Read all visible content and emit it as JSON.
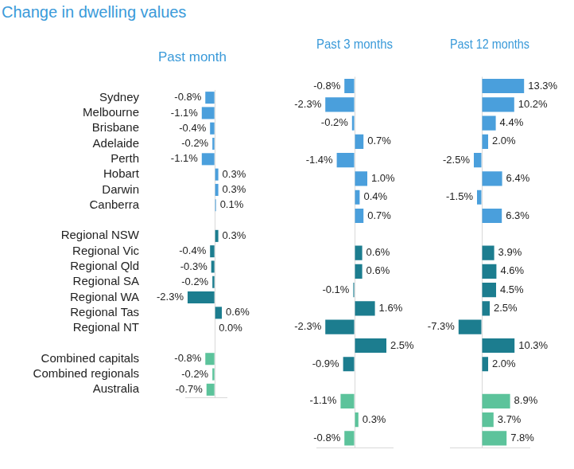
{
  "title": "Change in dwelling values",
  "chart_data": [
    {
      "type": "bar",
      "orientation": "horizontal",
      "title": "Past month",
      "categories": [
        "Sydney",
        "Melbourne",
        "Brisbane",
        "Adelaide",
        "Perth",
        "Hobart",
        "Darwin",
        "Canberra",
        null,
        "Regional NSW",
        "Regional Vic",
        "Regional Qld",
        "Regional SA",
        "Regional WA",
        "Regional Tas",
        "Regional NT",
        null,
        "Combined capitals",
        "Combined regionals",
        "Australia"
      ],
      "values": [
        -0.8,
        -1.1,
        -0.4,
        -0.2,
        -1.1,
        0.3,
        0.3,
        0.1,
        null,
        0.3,
        -0.4,
        -0.3,
        -0.2,
        -2.3,
        0.6,
        0.0,
        null,
        -0.8,
        -0.2,
        -0.7
      ],
      "value_labels": [
        "-0.8%",
        "-1.1%",
        "-0.4%",
        "-0.2%",
        "-1.1%",
        "0.3%",
        "0.3%",
        "0.1%",
        null,
        "0.3%",
        "-0.4%",
        "-0.3%",
        "-0.2%",
        "-2.3%",
        "0.6%",
        "0.0%",
        null,
        "-0.8%",
        "-0.2%",
        "-0.7%"
      ],
      "colors": [
        "#4a9fdc",
        "#4a9fdc",
        "#4a9fdc",
        "#4a9fdc",
        "#4a9fdc",
        "#4a9fdc",
        "#4a9fdc",
        "#4a9fdc",
        null,
        "#1c7d8f",
        "#1c7d8f",
        "#1c7d8f",
        "#1c7d8f",
        "#1c7d8f",
        "#1c7d8f",
        "#1c7d8f",
        null,
        "#5cc39b",
        "#5cc39b",
        "#5cc39b"
      ],
      "xlim": [
        -2.5,
        1.0
      ],
      "xticks": [
        0
      ],
      "grid": true,
      "data_labels": true,
      "tick_labels": "y"
    },
    {
      "type": "bar",
      "orientation": "horizontal",
      "title": "Past 3 months",
      "categories": [
        "Sydney",
        "Melbourne",
        "Brisbane",
        "Adelaide",
        "Perth",
        "Hobart",
        "Darwin",
        "Canberra",
        null,
        "Regional NSW",
        "Regional Vic",
        "Regional Qld",
        "Regional SA",
        "Regional WA",
        "Regional Tas",
        "Regional NT",
        null,
        "Combined capitals",
        "Combined regionals",
        "Australia"
      ],
      "values": [
        -0.8,
        -2.3,
        -0.2,
        0.7,
        -1.4,
        1.0,
        0.4,
        0.7,
        null,
        0.6,
        0.6,
        -0.1,
        1.6,
        -2.3,
        2.5,
        -0.9,
        null,
        -1.1,
        0.3,
        -0.8
      ],
      "value_labels": [
        "-0.8%",
        "-2.3%",
        "-0.2%",
        "0.7%",
        "-1.4%",
        "1.0%",
        "0.4%",
        "0.7%",
        null,
        "0.6%",
        "0.6%",
        "-0.1%",
        "1.6%",
        "-2.3%",
        "2.5%",
        "-0.9%",
        null,
        "-1.1%",
        "0.3%",
        "-0.8%"
      ],
      "colors": [
        "#4a9fdc",
        "#4a9fdc",
        "#4a9fdc",
        "#4a9fdc",
        "#4a9fdc",
        "#4a9fdc",
        "#4a9fdc",
        "#4a9fdc",
        null,
        "#1c7d8f",
        "#1c7d8f",
        "#1c7d8f",
        "#1c7d8f",
        "#1c7d8f",
        "#1c7d8f",
        "#1c7d8f",
        null,
        "#5cc39b",
        "#5cc39b",
        "#5cc39b"
      ],
      "xlim": [
        -3,
        3
      ],
      "xticks": [
        0
      ],
      "grid": true,
      "data_labels": true,
      "tick_labels": false
    },
    {
      "type": "bar",
      "orientation": "horizontal",
      "title": "Past 12 months",
      "categories": [
        "Sydney",
        "Melbourne",
        "Brisbane",
        "Adelaide",
        "Perth",
        "Hobart",
        "Darwin",
        "Canberra",
        null,
        "Regional NSW",
        "Regional Vic",
        "Regional Qld",
        "Regional SA",
        "Regional WA",
        "Regional Tas",
        "Regional NT",
        null,
        "Combined capitals",
        "Combined regionals",
        "Australia"
      ],
      "values": [
        13.3,
        10.2,
        4.4,
        2.0,
        -2.5,
        6.4,
        -1.5,
        6.3,
        null,
        3.9,
        4.6,
        4.5,
        2.5,
        -7.3,
        10.3,
        2.0,
        null,
        8.9,
        3.7,
        7.8
      ],
      "value_labels": [
        "13.3%",
        "10.2%",
        "4.4%",
        "2.0%",
        "-2.5%",
        "6.4%",
        "-1.5%",
        "6.3%",
        null,
        "3.9%",
        "4.6%",
        "4.5%",
        "2.5%",
        "-7.3%",
        "10.3%",
        "2.0%",
        null,
        "8.9%",
        "3.7%",
        "7.8%"
      ],
      "colors": [
        "#4a9fdc",
        "#4a9fdc",
        "#4a9fdc",
        "#4a9fdc",
        "#4a9fdc",
        "#4a9fdc",
        "#4a9fdc",
        "#4a9fdc",
        null,
        "#1c7d8f",
        "#1c7d8f",
        "#1c7d8f",
        "#1c7d8f",
        "#1c7d8f",
        "#1c7d8f",
        "#1c7d8f",
        null,
        "#5cc39b",
        "#5cc39b",
        "#5cc39b"
      ],
      "xlim": [
        -10,
        15
      ],
      "xticks": [
        0
      ],
      "grid": true,
      "data_labels": true,
      "tick_labels": false
    }
  ]
}
